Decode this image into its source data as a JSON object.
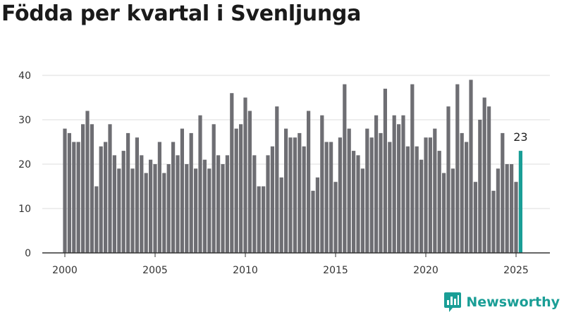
{
  "title": "Födda per kvartal i Svenljunga",
  "brand": {
    "name": "Newsworthy",
    "icon": "newsworthy-logo-icon",
    "color": "#1a9e96"
  },
  "chart_data": {
    "type": "bar",
    "title": "Födda per kvartal i Svenljunga",
    "xlabel": "",
    "ylabel": "",
    "start": {
      "year": 2000,
      "quarter": 1
    },
    "end": {
      "year": 2025,
      "quarter": 2
    },
    "values": [
      28,
      27,
      25,
      25,
      29,
      32,
      29,
      15,
      24,
      25,
      29,
      22,
      19,
      23,
      27,
      19,
      26,
      22,
      18,
      21,
      20,
      25,
      18,
      20,
      25,
      22,
      28,
      20,
      27,
      19,
      31,
      21,
      19,
      29,
      22,
      20,
      22,
      36,
      28,
      29,
      35,
      32,
      22,
      15,
      15,
      22,
      24,
      33,
      17,
      28,
      26,
      26,
      27,
      24,
      32,
      14,
      17,
      31,
      25,
      25,
      16,
      26,
      38,
      28,
      23,
      22,
      19,
      28,
      26,
      31,
      27,
      37,
      25,
      31,
      29,
      31,
      24,
      38,
      24,
      21,
      26,
      26,
      28,
      23,
      18,
      33,
      19,
      38,
      27,
      25,
      39,
      16,
      30,
      35,
      33,
      14,
      19,
      27,
      20,
      20,
      16,
      23
    ],
    "ylim": [
      0,
      40
    ],
    "yticks": [
      0,
      10,
      20,
      30,
      40
    ],
    "xticks": [
      2000,
      2005,
      2010,
      2015,
      2020,
      2025
    ],
    "highlight_last": true,
    "last_label": "23",
    "grid": true,
    "colors": {
      "bar": "#6e6e73",
      "highlight": "#1a9e96",
      "grid": "#dddddd"
    }
  }
}
